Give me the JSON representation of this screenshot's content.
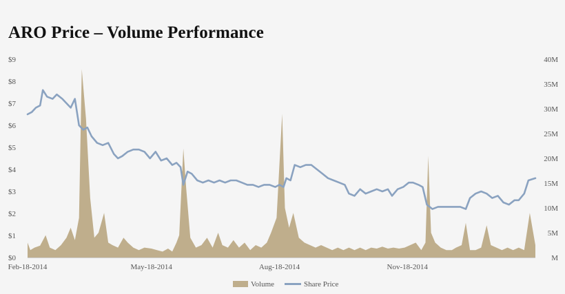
{
  "chart_data": {
    "type": "line+area",
    "title": "ARO Price – Volume Performance",
    "x_tick_labels": [
      "Feb-18-2014",
      "May-18-2014",
      "Aug-18-2014",
      "Nov-18-2014"
    ],
    "x_range": [
      "2014-02-18",
      "2015-02-18"
    ],
    "y_left": {
      "range": [
        0,
        9
      ],
      "tick_labels": [
        "$0",
        "$1",
        "$2",
        "$3",
        "$4",
        "$5",
        "$6",
        "$7",
        "$8",
        "$9"
      ]
    },
    "y_right": {
      "range": [
        0,
        40
      ],
      "unit": "M",
      "tick_labels": [
        "M",
        "5M",
        "10M",
        "15M",
        "20M",
        "25M",
        "30M",
        "35M",
        "40M"
      ]
    },
    "grid": false,
    "legend_position": "bottom",
    "series": [
      {
        "name": "Volume",
        "kind": "area",
        "axis": "right",
        "color": "#bfae8c",
        "points": [
          [
            "2014-02-18",
            3.0
          ],
          [
            "2014-02-20",
            1.5
          ],
          [
            "2014-02-23",
            2.0
          ],
          [
            "2014-02-27",
            2.4
          ],
          [
            "2014-03-03",
            4.5
          ],
          [
            "2014-03-06",
            2.0
          ],
          [
            "2014-03-10",
            1.5
          ],
          [
            "2014-03-14",
            2.5
          ],
          [
            "2014-03-18",
            4.0
          ],
          [
            "2014-03-21",
            6.0
          ],
          [
            "2014-03-24",
            3.5
          ],
          [
            "2014-03-27",
            8.0
          ],
          [
            "2014-03-29",
            38.0
          ],
          [
            "2014-04-01",
            28.0
          ],
          [
            "2014-04-04",
            12.0
          ],
          [
            "2014-04-07",
            4.0
          ],
          [
            "2014-04-10",
            5.0
          ],
          [
            "2014-04-14",
            9.0
          ],
          [
            "2014-04-17",
            3.0
          ],
          [
            "2014-04-20",
            2.5
          ],
          [
            "2014-04-24",
            2.0
          ],
          [
            "2014-04-28",
            4.0
          ],
          [
            "2014-05-01",
            3.0
          ],
          [
            "2014-05-05",
            2.0
          ],
          [
            "2014-05-09",
            1.5
          ],
          [
            "2014-05-13",
            2.0
          ],
          [
            "2014-05-18",
            1.8
          ],
          [
            "2014-05-22",
            1.5
          ],
          [
            "2014-05-26",
            1.2
          ],
          [
            "2014-05-30",
            1.8
          ],
          [
            "2014-06-02",
            1.2
          ],
          [
            "2014-06-05",
            3.0
          ],
          [
            "2014-06-07",
            4.5
          ],
          [
            "2014-06-10",
            22.0
          ],
          [
            "2014-06-12",
            14.0
          ],
          [
            "2014-06-15",
            4.0
          ],
          [
            "2014-06-19",
            2.0
          ],
          [
            "2014-06-23",
            2.5
          ],
          [
            "2014-06-27",
            4.0
          ],
          [
            "2014-07-01",
            2.0
          ],
          [
            "2014-07-05",
            5.0
          ],
          [
            "2014-07-08",
            2.5
          ],
          [
            "2014-07-12",
            2.0
          ],
          [
            "2014-07-16",
            3.5
          ],
          [
            "2014-07-20",
            2.0
          ],
          [
            "2014-07-24",
            3.0
          ],
          [
            "2014-07-28",
            1.5
          ],
          [
            "2014-08-01",
            2.5
          ],
          [
            "2014-08-05",
            2.0
          ],
          [
            "2014-08-09",
            3.0
          ],
          [
            "2014-08-12",
            5.0
          ],
          [
            "2014-08-16",
            8.0
          ],
          [
            "2014-08-20",
            29.0
          ],
          [
            "2014-08-22",
            10.0
          ],
          [
            "2014-08-25",
            6.0
          ],
          [
            "2014-08-28",
            9.0
          ],
          [
            "2014-09-01",
            4.0
          ],
          [
            "2014-09-05",
            3.0
          ],
          [
            "2014-09-09",
            2.5
          ],
          [
            "2014-09-13",
            2.0
          ],
          [
            "2014-09-17",
            2.5
          ],
          [
            "2014-09-21",
            2.0
          ],
          [
            "2014-09-25",
            1.5
          ],
          [
            "2014-09-29",
            2.0
          ],
          [
            "2014-10-03",
            1.5
          ],
          [
            "2014-10-07",
            2.0
          ],
          [
            "2014-10-11",
            1.5
          ],
          [
            "2014-10-15",
            2.0
          ],
          [
            "2014-10-19",
            1.5
          ],
          [
            "2014-10-23",
            2.0
          ],
          [
            "2014-10-27",
            1.8
          ],
          [
            "2014-10-31",
            2.2
          ],
          [
            "2014-11-04",
            1.8
          ],
          [
            "2014-11-08",
            2.0
          ],
          [
            "2014-11-12",
            1.8
          ],
          [
            "2014-11-16",
            2.0
          ],
          [
            "2014-11-20",
            2.5
          ],
          [
            "2014-11-24",
            3.0
          ],
          [
            "2014-11-28",
            1.5
          ],
          [
            "2014-12-01",
            3.0
          ],
          [
            "2014-12-03",
            20.5
          ],
          [
            "2014-12-05",
            5.0
          ],
          [
            "2014-12-08",
            3.0
          ],
          [
            "2014-12-12",
            2.0
          ],
          [
            "2014-12-16",
            1.5
          ],
          [
            "2014-12-20",
            1.5
          ],
          [
            "2014-12-23",
            2.0
          ],
          [
            "2014-12-27",
            2.5
          ],
          [
            "2014-12-30",
            7.0
          ],
          [
            "2015-01-02",
            1.5
          ],
          [
            "2015-01-06",
            1.5
          ],
          [
            "2015-01-10",
            2.0
          ],
          [
            "2015-01-14",
            6.5
          ],
          [
            "2015-01-17",
            2.5
          ],
          [
            "2015-01-21",
            2.0
          ],
          [
            "2015-01-25",
            1.5
          ],
          [
            "2015-01-29",
            2.0
          ],
          [
            "2015-02-02",
            1.5
          ],
          [
            "2015-02-06",
            2.0
          ],
          [
            "2015-02-10",
            1.5
          ],
          [
            "2015-02-14",
            9.0
          ],
          [
            "2015-02-18",
            2.5
          ]
        ]
      },
      {
        "name": "Share Price",
        "kind": "line",
        "axis": "left",
        "color": "#8aa2c0",
        "points": [
          [
            "2014-02-18",
            6.5
          ],
          [
            "2014-02-21",
            6.6
          ],
          [
            "2014-02-24",
            6.8
          ],
          [
            "2014-02-27",
            6.9
          ],
          [
            "2014-03-01",
            7.6
          ],
          [
            "2014-03-04",
            7.3
          ],
          [
            "2014-03-08",
            7.2
          ],
          [
            "2014-03-11",
            7.4
          ],
          [
            "2014-03-15",
            7.2
          ],
          [
            "2014-03-18",
            7.0
          ],
          [
            "2014-03-21",
            6.8
          ],
          [
            "2014-03-24",
            7.2
          ],
          [
            "2014-03-27",
            6.0
          ],
          [
            "2014-03-30",
            5.8
          ],
          [
            "2014-04-02",
            5.9
          ],
          [
            "2014-04-05",
            5.5
          ],
          [
            "2014-04-09",
            5.2
          ],
          [
            "2014-04-13",
            5.1
          ],
          [
            "2014-04-17",
            5.2
          ],
          [
            "2014-04-21",
            4.7
          ],
          [
            "2014-04-24",
            4.5
          ],
          [
            "2014-04-27",
            4.6
          ],
          [
            "2014-05-01",
            4.8
          ],
          [
            "2014-05-05",
            4.9
          ],
          [
            "2014-05-09",
            4.9
          ],
          [
            "2014-05-13",
            4.8
          ],
          [
            "2014-05-17",
            4.5
          ],
          [
            "2014-05-21",
            4.8
          ],
          [
            "2014-05-25",
            4.4
          ],
          [
            "2014-05-29",
            4.5
          ],
          [
            "2014-06-02",
            4.2
          ],
          [
            "2014-06-05",
            4.3
          ],
          [
            "2014-06-08",
            4.1
          ],
          [
            "2014-06-10",
            3.3
          ],
          [
            "2014-06-13",
            3.9
          ],
          [
            "2014-06-16",
            3.8
          ],
          [
            "2014-06-20",
            3.5
          ],
          [
            "2014-06-24",
            3.4
          ],
          [
            "2014-06-28",
            3.5
          ],
          [
            "2014-07-02",
            3.4
          ],
          [
            "2014-07-06",
            3.5
          ],
          [
            "2014-07-10",
            3.4
          ],
          [
            "2014-07-14",
            3.5
          ],
          [
            "2014-07-18",
            3.5
          ],
          [
            "2014-07-22",
            3.4
          ],
          [
            "2014-07-26",
            3.3
          ],
          [
            "2014-07-30",
            3.3
          ],
          [
            "2014-08-03",
            3.2
          ],
          [
            "2014-08-07",
            3.3
          ],
          [
            "2014-08-11",
            3.3
          ],
          [
            "2014-08-15",
            3.2
          ],
          [
            "2014-08-18",
            3.3
          ],
          [
            "2014-08-21",
            3.2
          ],
          [
            "2014-08-23",
            3.6
          ],
          [
            "2014-08-26",
            3.5
          ],
          [
            "2014-08-29",
            4.2
          ],
          [
            "2014-09-02",
            4.1
          ],
          [
            "2014-09-06",
            4.2
          ],
          [
            "2014-09-10",
            4.2
          ],
          [
            "2014-09-14",
            4.0
          ],
          [
            "2014-09-18",
            3.8
          ],
          [
            "2014-09-22",
            3.6
          ],
          [
            "2014-09-26",
            3.5
          ],
          [
            "2014-09-30",
            3.4
          ],
          [
            "2014-10-04",
            3.3
          ],
          [
            "2014-10-07",
            2.9
          ],
          [
            "2014-10-11",
            2.8
          ],
          [
            "2014-10-15",
            3.1
          ],
          [
            "2014-10-19",
            2.9
          ],
          [
            "2014-10-23",
            3.0
          ],
          [
            "2014-10-27",
            3.1
          ],
          [
            "2014-10-31",
            3.0
          ],
          [
            "2014-11-04",
            3.1
          ],
          [
            "2014-11-07",
            2.8
          ],
          [
            "2014-11-11",
            3.1
          ],
          [
            "2014-11-15",
            3.2
          ],
          [
            "2014-11-19",
            3.4
          ],
          [
            "2014-11-22",
            3.4
          ],
          [
            "2014-11-26",
            3.3
          ],
          [
            "2014-11-29",
            3.2
          ],
          [
            "2014-12-02",
            2.4
          ],
          [
            "2014-12-06",
            2.2
          ],
          [
            "2014-12-10",
            2.3
          ],
          [
            "2014-12-14",
            2.3
          ],
          [
            "2014-12-18",
            2.3
          ],
          [
            "2014-12-22",
            2.3
          ],
          [
            "2014-12-26",
            2.3
          ],
          [
            "2014-12-30",
            2.2
          ],
          [
            "2015-01-02",
            2.7
          ],
          [
            "2015-01-06",
            2.9
          ],
          [
            "2015-01-10",
            3.0
          ],
          [
            "2015-01-14",
            2.9
          ],
          [
            "2015-01-18",
            2.7
          ],
          [
            "2015-01-22",
            2.8
          ],
          [
            "2015-01-26",
            2.5
          ],
          [
            "2015-01-30",
            2.4
          ],
          [
            "2015-02-03",
            2.6
          ],
          [
            "2015-02-06",
            2.6
          ],
          [
            "2015-02-10",
            2.9
          ],
          [
            "2015-02-13",
            3.5
          ],
          [
            "2015-02-18",
            3.6
          ]
        ]
      }
    ]
  }
}
